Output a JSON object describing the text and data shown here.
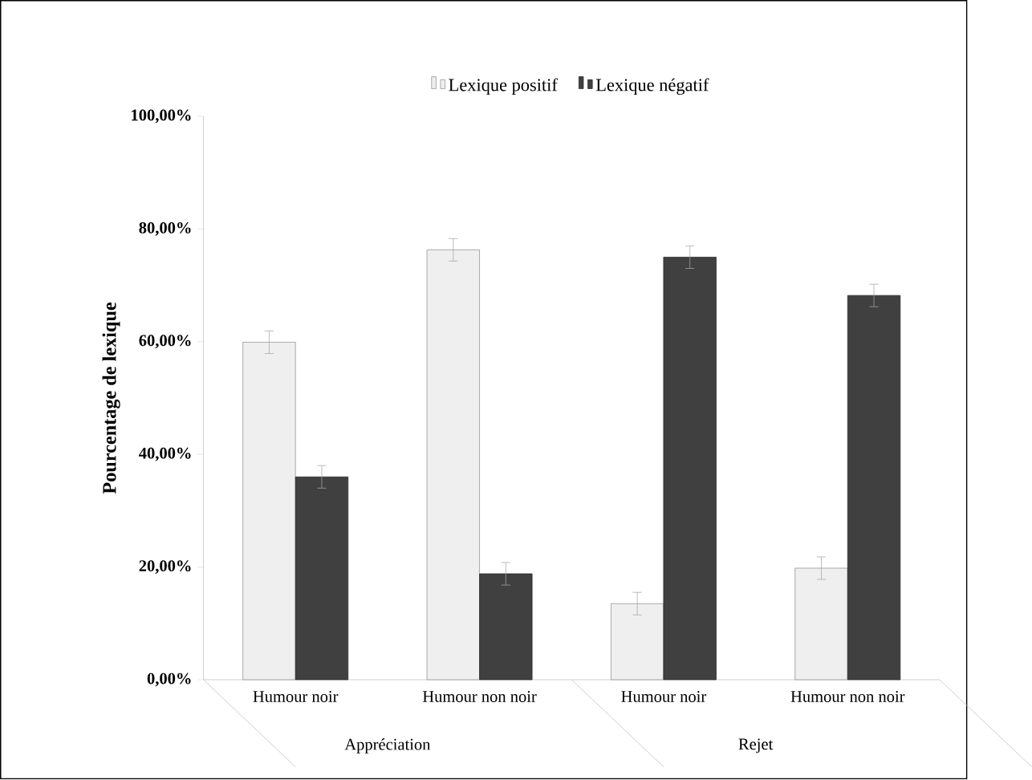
{
  "chart_data": {
    "type": "bar",
    "ylabel": "Pourcentage de lexique",
    "categories": [
      "Humour noir",
      "Humour non noir",
      "Humour noir",
      "Humour non noir"
    ],
    "series": [
      {
        "name": "Lexique positif",
        "color": "#efefef",
        "values": [
          59.9,
          76.3,
          13.5,
          19.8
        ],
        "errors": [
          2,
          2,
          2,
          2
        ]
      },
      {
        "name": "Lexique négatif",
        "color": "#404040",
        "values": [
          36.0,
          18.8,
          75.0,
          68.2
        ],
        "errors": [
          2,
          2,
          2,
          2
        ]
      }
    ],
    "annotations": [
      "Appréciation",
      "Rejet"
    ],
    "ylim": [
      0,
      100
    ],
    "yticks": [
      {
        "value": 0,
        "label": "0,00%"
      },
      {
        "value": 20,
        "label": "20,00%"
      },
      {
        "value": 40,
        "label": "40,00%"
      },
      {
        "value": 60,
        "label": "60,00%"
      },
      {
        "value": 80,
        "label": "80,00%"
      },
      {
        "value": 100,
        "label": "100,00%"
      }
    ],
    "legend": "top"
  }
}
